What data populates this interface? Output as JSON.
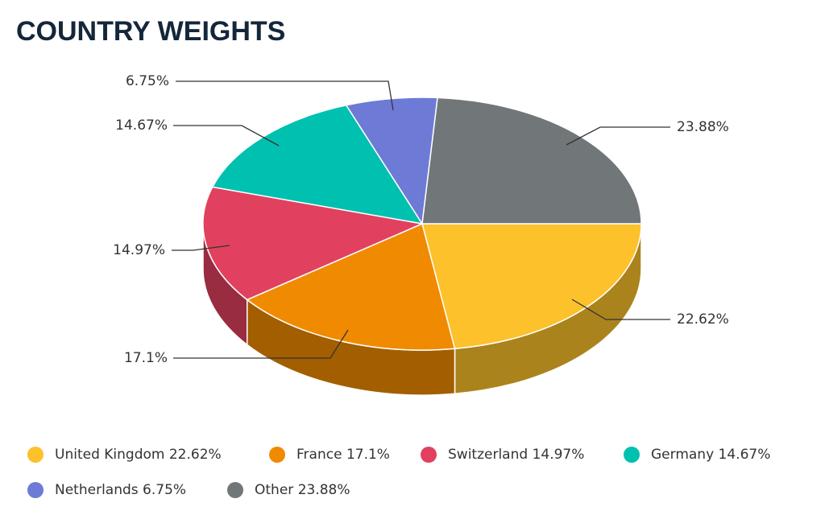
{
  "chart_data": {
    "type": "pie3d",
    "title": "COUNTRY WEIGHTS",
    "categories": [
      "United Kingdom",
      "France",
      "Switzerland",
      "Germany",
      "Netherlands",
      "Other"
    ],
    "values": [
      22.62,
      17.1,
      14.97,
      14.67,
      6.75,
      23.88
    ],
    "value_labels": [
      "22.62%",
      "17.1%",
      "14.97%",
      "14.67%",
      "6.75%",
      "23.88%"
    ],
    "colors": [
      "#fcc12b",
      "#f08a00",
      "#e1415e",
      "#00c0b0",
      "#6d7bd6",
      "#717679"
    ],
    "legend": "bottom"
  }
}
